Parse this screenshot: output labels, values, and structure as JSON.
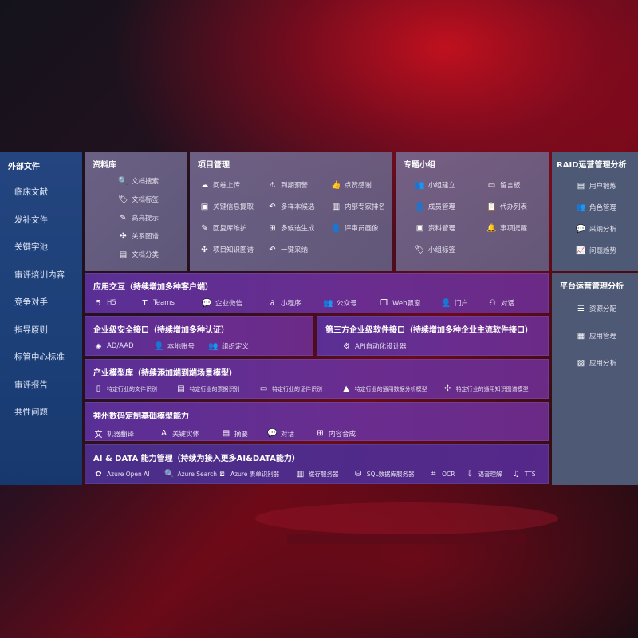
{
  "sidebar": {
    "title": "外部文件",
    "items": [
      "临床文献",
      "发补文件",
      "关键字池",
      "审评培训内容",
      "竞争对手",
      "指导原则",
      "标管中心标准",
      "审评报告",
      "共性问题"
    ]
  },
  "library": {
    "title": "资料库",
    "items": [
      {
        "icon": "document-search-icon",
        "glyph": "🔍",
        "label": "文档搜索"
      },
      {
        "icon": "tag-icon",
        "glyph": "🏷",
        "label": "文档标签"
      },
      {
        "icon": "pen-icon",
        "glyph": "✎",
        "label": "高亮提示"
      },
      {
        "icon": "graph-icon",
        "glyph": "✣",
        "label": "关系图谱"
      },
      {
        "icon": "document-category-icon",
        "glyph": "▤",
        "label": "文档分类"
      }
    ]
  },
  "project": {
    "title": "项目管理",
    "items": [
      {
        "icon": "cloud-upload-icon",
        "glyph": "☁",
        "label": "问卷上传"
      },
      {
        "icon": "alarm-icon",
        "glyph": "⚠",
        "label": "到期预警"
      },
      {
        "icon": "thumbs-up-icon",
        "glyph": "👍",
        "label": "点赞感谢"
      },
      {
        "icon": "window-icon",
        "glyph": "▣",
        "label": "关键信息提取"
      },
      {
        "icon": "reply-icon",
        "glyph": "↶",
        "label": "多样本候选"
      },
      {
        "icon": "ranking-icon",
        "glyph": "▥",
        "label": "内部专家排名"
      },
      {
        "icon": "edit-icon",
        "glyph": "✎",
        "label": "回复库维护"
      },
      {
        "icon": "puzzle-icon",
        "glyph": "⊞",
        "label": "多候选生成"
      },
      {
        "icon": "person-icon",
        "glyph": "👤",
        "label": "评审员画像"
      },
      {
        "icon": "knowledge-graph-icon",
        "glyph": "✣",
        "label": "项目知识图谱"
      },
      {
        "icon": "reply-icon",
        "glyph": "↶",
        "label": "一键采纳"
      }
    ]
  },
  "group": {
    "title": "专题小组",
    "items": [
      {
        "icon": "group-icon",
        "glyph": "👥",
        "label": "小组建立"
      },
      {
        "icon": "bbs-icon",
        "glyph": "▭",
        "label": "留言板"
      },
      {
        "icon": "member-icon",
        "glyph": "👤",
        "label": "成员管理"
      },
      {
        "icon": "clipboard-icon",
        "glyph": "📋",
        "label": "代办列表"
      },
      {
        "icon": "folder-icon",
        "glyph": "▣",
        "label": "资料管理"
      },
      {
        "icon": "bell-icon",
        "glyph": "🔔",
        "label": "事项提醒"
      },
      {
        "icon": "tag-icon",
        "glyph": "🏷",
        "label": "小组标签"
      }
    ]
  },
  "raid": {
    "title": "RAID运营管理分析",
    "items": [
      {
        "icon": "id-card-icon",
        "glyph": "▤",
        "label": "用户锻炼"
      },
      {
        "icon": "users-icon",
        "glyph": "👥",
        "label": "角色管理"
      },
      {
        "icon": "qa-icon",
        "glyph": "💬",
        "label": "采纳分析"
      },
      {
        "icon": "trend-chart-icon",
        "glyph": "📈",
        "label": "问题趋势"
      }
    ]
  },
  "platform": {
    "title": "平台运营管理分析",
    "items": [
      {
        "icon": "checklist-icon",
        "glyph": "☰",
        "label": "资源分配"
      },
      {
        "icon": "apps-icon",
        "glyph": "▦",
        "label": "应用管理"
      },
      {
        "icon": "analytics-icon",
        "glyph": "▧",
        "label": "应用分析"
      }
    ]
  },
  "app": {
    "title": "应用交互（持续增加多种客户端）",
    "items": [
      {
        "icon": "html5-icon",
        "glyph": "5",
        "label": "H5"
      },
      {
        "icon": "teams-icon",
        "glyph": "T",
        "label": "Teams"
      },
      {
        "icon": "wecom-icon",
        "glyph": "💬",
        "label": "企业微信"
      },
      {
        "icon": "miniprogram-icon",
        "glyph": "∂",
        "label": "小程序"
      },
      {
        "icon": "public-account-icon",
        "glyph": "👥",
        "label": "公众号"
      },
      {
        "icon": "web-window-icon",
        "glyph": "❐",
        "label": "Web飘窗"
      },
      {
        "icon": "portal-icon",
        "glyph": "👤",
        "label": "门户"
      },
      {
        "icon": "chat-icon",
        "glyph": "⚇",
        "label": "对话"
      }
    ]
  },
  "security": {
    "title": "企业级安全接口（持续增加多种认证）",
    "items": [
      {
        "icon": "aad-icon",
        "glyph": "◈",
        "label": "AD/AAD"
      },
      {
        "icon": "local-account-icon",
        "glyph": "👤",
        "label": "本地账号"
      },
      {
        "icon": "org-icon",
        "glyph": "👥",
        "label": "组织定义"
      }
    ]
  },
  "thirdparty": {
    "title": "第三方企业级软件接口（持续增加多种企业主流软件接口）",
    "items": [
      {
        "icon": "gear-icon",
        "glyph": "⚙",
        "label": "API自动化设计器"
      }
    ]
  },
  "industry": {
    "title": "产业模型库（持续添加端到端场景模型）",
    "items": [
      {
        "icon": "file-icon",
        "glyph": "▯",
        "label": "特定行业的文件识别"
      },
      {
        "icon": "receipt-icon",
        "glyph": "▤",
        "label": "特定行业的票据识别"
      },
      {
        "icon": "id-card-icon",
        "glyph": "▭",
        "label": "特定行业的证件识别"
      },
      {
        "icon": "data-analysis-icon",
        "glyph": "▲",
        "label": "特定行业的通用数据分析模型"
      },
      {
        "icon": "knowledge-graph-icon",
        "glyph": "✣",
        "label": "特定行业的通用知识图谱模型"
      }
    ]
  },
  "base": {
    "title": "神州数码定制基础模型能力",
    "items": [
      {
        "icon": "translate-icon",
        "glyph": "文",
        "label": "机器翻译"
      },
      {
        "icon": "entity-icon",
        "glyph": "A",
        "label": "关键实体"
      },
      {
        "icon": "summary-icon",
        "glyph": "▤",
        "label": "摘要"
      },
      {
        "icon": "chat-bubble-icon",
        "glyph": "💬",
        "label": "对话"
      },
      {
        "icon": "compose-icon",
        "glyph": "⊞",
        "label": "内容合成"
      }
    ]
  },
  "ai": {
    "title": "AI & DATA 能力管理（持续为接入更多AI&DATA能力）",
    "items": [
      {
        "icon": "openai-icon",
        "glyph": "✿",
        "label": "Azure Open AI"
      },
      {
        "icon": "search-doc-icon",
        "glyph": "🔍",
        "label": "Azure Search"
      },
      {
        "icon": "form-recognizer-icon",
        "glyph": "⧈",
        "label": "Azure 表单识别器"
      },
      {
        "icon": "cache-server-icon",
        "glyph": "▥",
        "label": "缓存服务器"
      },
      {
        "icon": "sql-db-icon",
        "glyph": "⛁",
        "label": "SQL数据库服务器"
      },
      {
        "icon": "ocr-icon",
        "glyph": "⌗",
        "label": "OCR"
      },
      {
        "icon": "speech-icon",
        "glyph": "⇩",
        "label": "语音理解"
      },
      {
        "icon": "tts-icon",
        "glyph": "♫",
        "label": "TTS"
      }
    ]
  }
}
